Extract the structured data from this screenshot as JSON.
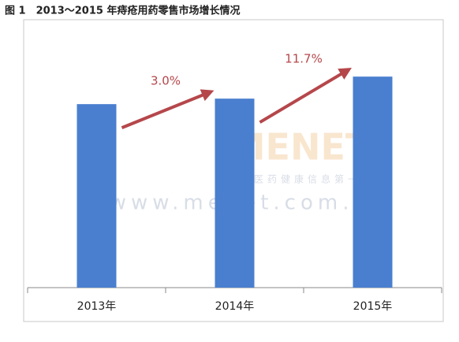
{
  "chart_data": {
    "type": "bar",
    "title": "图 1　2013～2015 年痔疮用药零售市场增长情况",
    "categories": [
      "2013年",
      "2014年",
      "2015年"
    ],
    "values": [
      100,
      103,
      115
    ],
    "color": "#4a7fcf",
    "ylim": [
      0,
      140
    ],
    "growth": [
      {
        "value": 3.0,
        "label": "3.0%"
      },
      {
        "value": 11.7,
        "label": "11.7%"
      }
    ],
    "watermark": [
      "MENET",
      "中国医药健康信息第一平台",
      "www.menet.com.cn"
    ]
  }
}
